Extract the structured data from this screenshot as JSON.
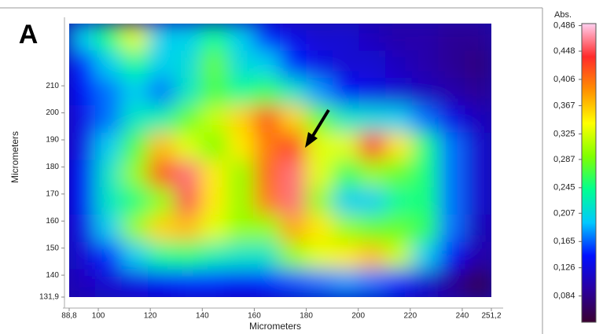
{
  "chart_data": {
    "type": "heatmap",
    "panel_label": "A",
    "x_label": "Micrometers",
    "y_label": "Micrometers",
    "colorbar_title": "Abs.",
    "xlim": [
      88.8,
      251.2
    ],
    "ylim": [
      131.9,
      233
    ],
    "xticks": [
      {
        "value": 88.8,
        "label": "88,8"
      },
      100,
      120,
      140,
      160,
      180,
      200,
      220,
      240,
      {
        "value": 251.2,
        "label": "251,2"
      }
    ],
    "yticks": [
      {
        "value": 131.9,
        "label": "131,9"
      },
      140,
      150,
      160,
      170,
      180,
      190,
      200,
      210
    ],
    "zlim": [
      0.045,
      0.489
    ],
    "zticks": [
      {
        "value": 0.486,
        "label": "0,486"
      },
      {
        "value": 0.448,
        "label": "0,448"
      },
      {
        "value": 0.406,
        "label": "0,406"
      },
      {
        "value": 0.367,
        "label": "0,367"
      },
      {
        "value": 0.325,
        "label": "0,325"
      },
      {
        "value": 0.287,
        "label": "0,287"
      },
      {
        "value": 0.245,
        "label": "0,245"
      },
      {
        "value": 0.207,
        "label": "0,207"
      },
      {
        "value": 0.165,
        "label": "0,165"
      },
      {
        "value": 0.126,
        "label": "0,126"
      },
      {
        "value": 0.084,
        "label": "0,084"
      }
    ],
    "colormap": [
      "#3a0030",
      "#2a00a0",
      "#0010ff",
      "#00c8ff",
      "#00ff90",
      "#80ff00",
      "#ffff00",
      "#ff9000",
      "#ff2a2a",
      "#ffd0f0"
    ],
    "z": [
      [
        0.2,
        0.25,
        0.33,
        0.2,
        0.2,
        0.24,
        0.2,
        0.15,
        0.13,
        0.12,
        0.12,
        0.11,
        0.1,
        0.1,
        0.09,
        0.09
      ],
      [
        0.15,
        0.2,
        0.24,
        0.2,
        0.21,
        0.28,
        0.21,
        0.2,
        0.15,
        0.13,
        0.12,
        0.12,
        0.11,
        0.1,
        0.09,
        0.08
      ],
      [
        0.14,
        0.17,
        0.2,
        0.17,
        0.22,
        0.27,
        0.24,
        0.26,
        0.22,
        0.18,
        0.14,
        0.13,
        0.12,
        0.11,
        0.1,
        0.09
      ],
      [
        0.13,
        0.17,
        0.22,
        0.23,
        0.28,
        0.32,
        0.36,
        0.42,
        0.36,
        0.28,
        0.22,
        0.21,
        0.2,
        0.17,
        0.13,
        0.11
      ],
      [
        0.13,
        0.2,
        0.27,
        0.37,
        0.33,
        0.29,
        0.35,
        0.4,
        0.43,
        0.33,
        0.33,
        0.44,
        0.35,
        0.25,
        0.17,
        0.12
      ],
      [
        0.14,
        0.22,
        0.3,
        0.42,
        0.46,
        0.35,
        0.3,
        0.41,
        0.46,
        0.33,
        0.26,
        0.3,
        0.28,
        0.25,
        0.17,
        0.12
      ],
      [
        0.14,
        0.22,
        0.25,
        0.3,
        0.45,
        0.35,
        0.3,
        0.4,
        0.46,
        0.3,
        0.2,
        0.2,
        0.24,
        0.25,
        0.17,
        0.12
      ],
      [
        0.13,
        0.2,
        0.3,
        0.36,
        0.37,
        0.33,
        0.3,
        0.3,
        0.38,
        0.35,
        0.3,
        0.28,
        0.28,
        0.26,
        0.17,
        0.11
      ],
      [
        0.12,
        0.15,
        0.2,
        0.24,
        0.25,
        0.23,
        0.22,
        0.22,
        0.3,
        0.33,
        0.35,
        0.37,
        0.32,
        0.2,
        0.14,
        0.1
      ],
      [
        0.11,
        0.12,
        0.13,
        0.14,
        0.15,
        0.15,
        0.14,
        0.15,
        0.16,
        0.17,
        0.18,
        0.17,
        0.15,
        0.12,
        0.09,
        0.06
      ]
    ]
  }
}
